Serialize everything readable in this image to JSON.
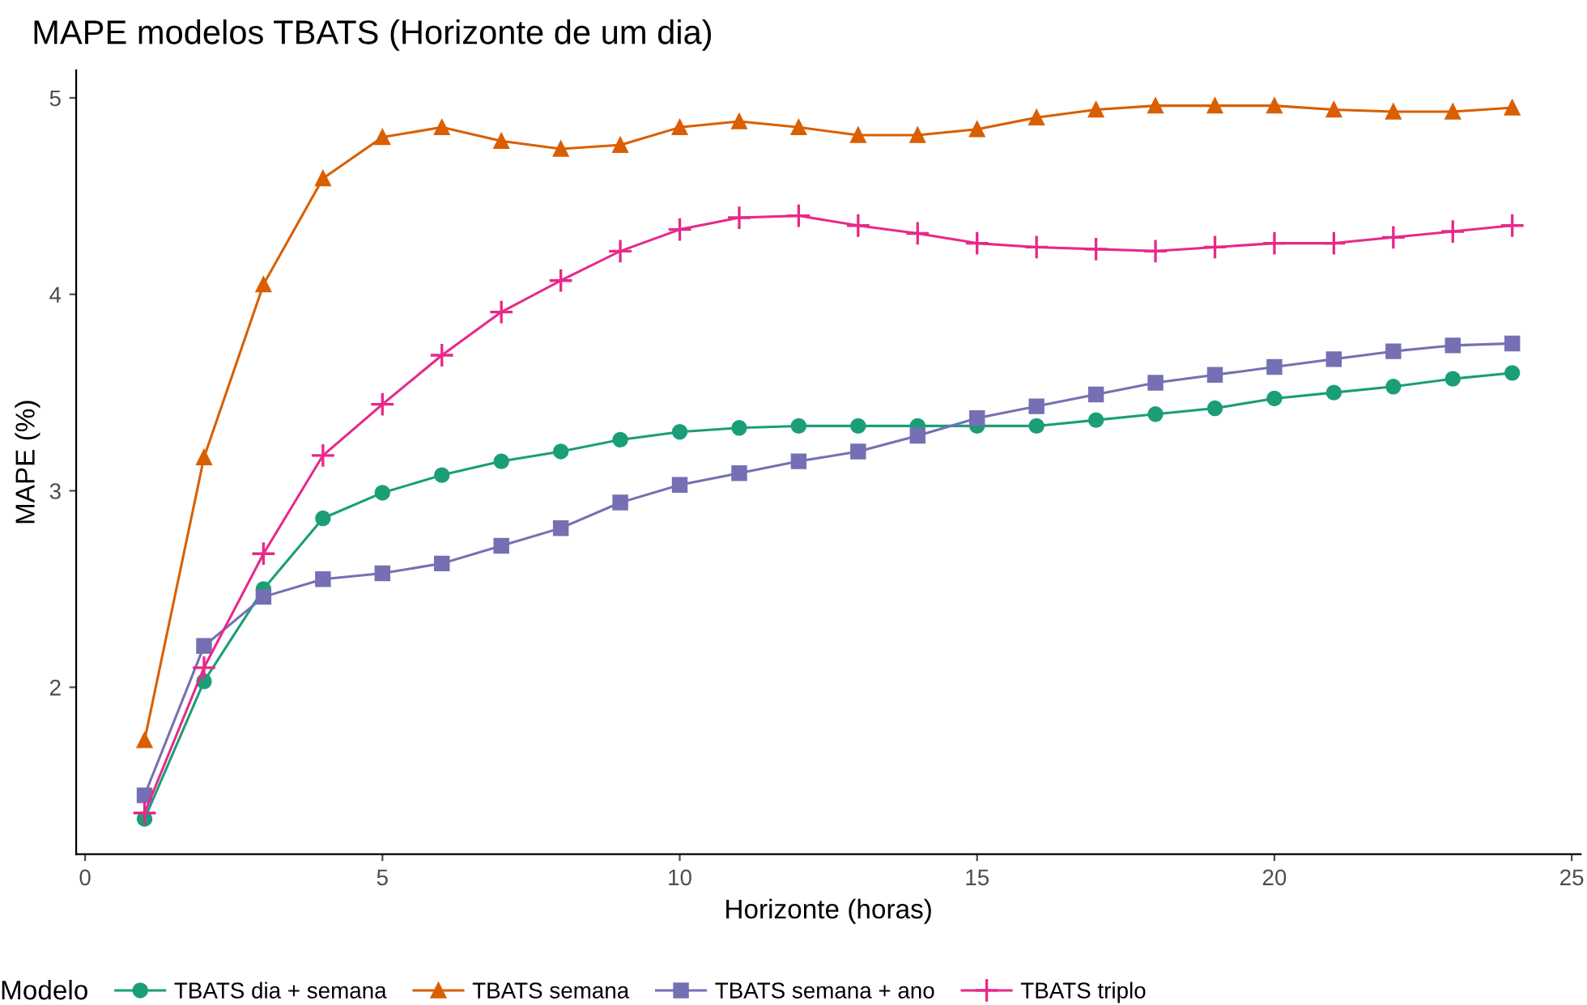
{
  "chart_data": {
    "type": "line",
    "title": "MAPE modelos TBATS (Horizonte de um dia)",
    "xlabel": "Horizonte (horas)",
    "ylabel": "MAPE (%)",
    "legend_title": "Modelo",
    "legend": "bottom",
    "grid": false,
    "x": [
      1,
      2,
      3,
      4,
      5,
      6,
      7,
      8,
      9,
      10,
      11,
      12,
      13,
      14,
      15,
      16,
      17,
      18,
      19,
      20,
      21,
      22,
      23,
      24
    ],
    "xlim": [
      -0.15,
      25.15
    ],
    "xticks": [
      0,
      5,
      10,
      15,
      20,
      25
    ],
    "ylim": [
      1.15,
      5.14
    ],
    "yticks": [
      2,
      3,
      4,
      5
    ],
    "series": [
      {
        "name": "TBATS dia + semana",
        "color": "#1b9e77",
        "marker": "circle",
        "values": [
          1.33,
          2.03,
          2.5,
          2.86,
          2.99,
          3.08,
          3.15,
          3.2,
          3.26,
          3.3,
          3.32,
          3.33,
          3.33,
          3.33,
          3.33,
          3.33,
          3.36,
          3.39,
          3.42,
          3.47,
          3.5,
          3.53,
          3.57,
          3.6
        ]
      },
      {
        "name": "TBATS semana",
        "color": "#d95f02",
        "marker": "triangle",
        "values": [
          1.73,
          3.17,
          4.05,
          4.59,
          4.8,
          4.85,
          4.78,
          4.74,
          4.76,
          4.85,
          4.88,
          4.85,
          4.81,
          4.81,
          4.84,
          4.9,
          4.94,
          4.96,
          4.96,
          4.96,
          4.94,
          4.93,
          4.93,
          4.95
        ]
      },
      {
        "name": "TBATS semana + ano",
        "color": "#7570b3",
        "marker": "square",
        "values": [
          1.45,
          2.21,
          2.46,
          2.55,
          2.58,
          2.63,
          2.72,
          2.81,
          2.94,
          3.03,
          3.09,
          3.15,
          3.2,
          3.28,
          3.37,
          3.43,
          3.49,
          3.55,
          3.59,
          3.63,
          3.67,
          3.71,
          3.74,
          3.75
        ]
      },
      {
        "name": "TBATS triplo",
        "color": "#e7298a",
        "marker": "cross",
        "values": [
          1.36,
          2.1,
          2.68,
          3.18,
          3.44,
          3.69,
          3.91,
          4.07,
          4.22,
          4.33,
          4.39,
          4.4,
          4.35,
          4.31,
          4.26,
          4.24,
          4.23,
          4.22,
          4.24,
          4.26,
          4.26,
          4.29,
          4.32,
          4.35
        ]
      }
    ]
  }
}
